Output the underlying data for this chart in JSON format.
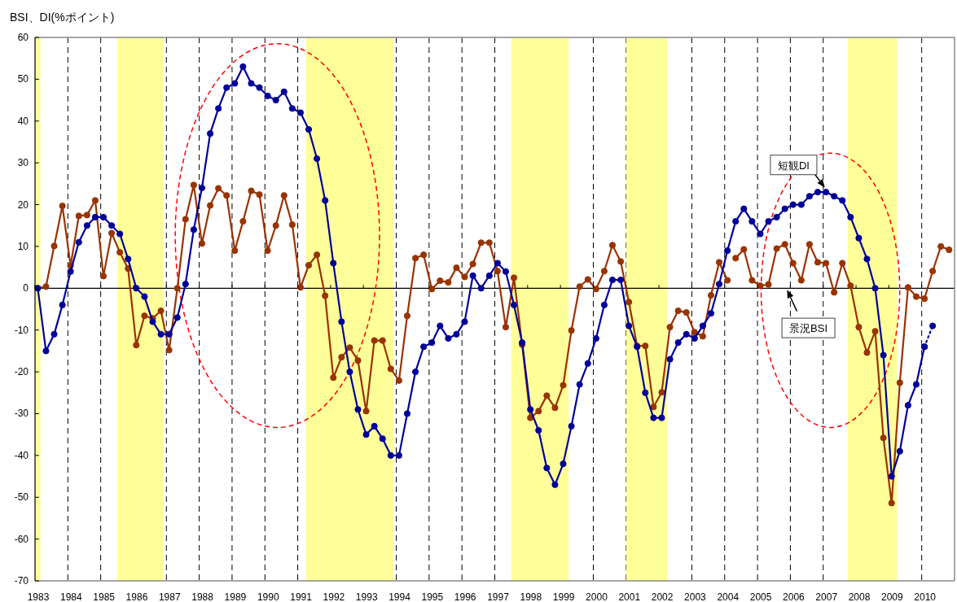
{
  "chart_data": {
    "type": "line",
    "ylabel": "BSI、DI(%ポイント)",
    "x": [
      "1983-02",
      "1983-05",
      "1983-08",
      "1983-11",
      "1984-02",
      "1984-05",
      "1984-08",
      "1984-11",
      "1985-02",
      "1985-05",
      "1985-08",
      "1985-11",
      "1986-02",
      "1986-05",
      "1986-08",
      "1986-11",
      "1987-02",
      "1987-05",
      "1987-08",
      "1987-11",
      "1988-02",
      "1988-05",
      "1988-08",
      "1988-11",
      "1989-02",
      "1989-05",
      "1989-08",
      "1989-11",
      "1990-02",
      "1990-05",
      "1990-08",
      "1990-11",
      "1991-02",
      "1991-05",
      "1991-08",
      "1991-11",
      "1992-02",
      "1992-05",
      "1992-08",
      "1992-11",
      "1993-02",
      "1993-05",
      "1993-08",
      "1993-11",
      "1994-02",
      "1994-05",
      "1994-08",
      "1994-11",
      "1995-02",
      "1995-05",
      "1995-08",
      "1995-11",
      "1996-02",
      "1996-05",
      "1996-08",
      "1996-11",
      "1997-02",
      "1997-05",
      "1997-08",
      "1997-11",
      "1998-02",
      "1998-05",
      "1998-08",
      "1998-11",
      "1999-02",
      "1999-05",
      "1999-08",
      "1999-11",
      "2000-02",
      "2000-05",
      "2000-08",
      "2000-11",
      "2001-02",
      "2001-05",
      "2001-08",
      "2001-11",
      "2002-02",
      "2002-05",
      "2002-08",
      "2002-11",
      "2003-02",
      "2003-05",
      "2003-08",
      "2003-11",
      "2004-02",
      "2004-05",
      "2004-08",
      "2004-11",
      "2005-02",
      "2005-05",
      "2005-08",
      "2005-11",
      "2006-02",
      "2006-05",
      "2006-08",
      "2006-11",
      "2007-02",
      "2007-05",
      "2007-08",
      "2007-11",
      "2008-02",
      "2008-05",
      "2008-08",
      "2008-11",
      "2009-02",
      "2009-05",
      "2009-08",
      "2009-11",
      "2010-02",
      "2010-05",
      "2010-08",
      "2010-11"
    ],
    "series": [
      {
        "color": "#993300",
        "marker": "circle",
        "values": [
          0,
          0.4,
          10.1,
          19.7,
          5.4,
          17.3,
          17.5,
          21,
          2.9,
          13.2,
          8.6,
          4.7,
          -13.6,
          -6.6,
          -7.2,
          -5.4,
          -14.8,
          0,
          16.5,
          24.7,
          10.7,
          19.8,
          23.9,
          22.2,
          9,
          16,
          23.3,
          22.4,
          9,
          15,
          22.2,
          15.2,
          0.2,
          5.5,
          8,
          -1.8,
          -21.4,
          -16.5,
          -14.2,
          -17.3,
          -29.4,
          -12.5,
          -12.5,
          -19.3,
          -22.1,
          -6.6,
          7.2,
          8,
          -0.2,
          1.8,
          1.4,
          4.9,
          2.7,
          5.8,
          10.9,
          10.9,
          4.1,
          -9.3,
          2.5,
          -13.5,
          -31,
          -29.4,
          -25.7,
          -28.6,
          -23.2,
          -10.1,
          0.4,
          2.1,
          -0.2,
          4.1,
          10.3,
          6.4,
          -3.3,
          -13.8,
          -13.8,
          -28.4,
          -24.9,
          -9.3,
          -5.4,
          -5.8,
          -10.5,
          -11.5,
          -1.7,
          6.2,
          1.9,
          null,
          null,
          null,
          null,
          null,
          null,
          null,
          null,
          null,
          null,
          null,
          null,
          null,
          null,
          null,
          null,
          null,
          null,
          null,
          null,
          null,
          null,
          null,
          null,
          null,
          null,
          null
        ]
      },
      {
        "name": "景況BSI",
        "color": "#993300",
        "marker": "circle",
        "values": [
          null,
          null,
          null,
          null,
          null,
          null,
          null,
          null,
          null,
          null,
          null,
          null,
          null,
          null,
          null,
          null,
          null,
          null,
          null,
          null,
          null,
          null,
          null,
          null,
          null,
          null,
          null,
          null,
          null,
          null,
          null,
          null,
          null,
          null,
          null,
          null,
          null,
          null,
          null,
          null,
          null,
          null,
          null,
          null,
          null,
          null,
          null,
          null,
          null,
          null,
          null,
          null,
          null,
          null,
          null,
          null,
          null,
          null,
          null,
          null,
          null,
          null,
          null,
          null,
          null,
          null,
          null,
          null,
          null,
          null,
          null,
          null,
          null,
          null,
          null,
          null,
          null,
          null,
          null,
          null,
          null,
          null,
          null,
          null,
          null,
          7.2,
          9.3,
          1.9,
          0.6,
          0.9,
          9.5,
          10.5,
          6,
          1.9,
          10.5,
          6.2,
          6,
          -1,
          6,
          0.6,
          -9.3,
          -15.4,
          -10.3,
          -35.8,
          -51.4,
          -22.6,
          0.2,
          -2,
          -2.5,
          4.1,
          10,
          9.2
        ]
      },
      {
        "name": "短観DI",
        "color": "#000099",
        "marker": "circle",
        "values": [
          0,
          -15,
          -11,
          -4,
          4,
          11,
          15,
          17,
          17,
          15,
          13,
          7,
          0,
          -2,
          -8,
          -11,
          -11,
          -7,
          1,
          14,
          24,
          37,
          43,
          48,
          49,
          53,
          49,
          48,
          46,
          45,
          47,
          43,
          42,
          38,
          31,
          21,
          6,
          -8,
          -20,
          -29,
          -35,
          -33,
          -36,
          -40,
          -40,
          -30,
          -20,
          -14,
          -13,
          -9,
          -12,
          -11,
          -8,
          3,
          0,
          3,
          6,
          4,
          -4,
          -13,
          -29,
          -34,
          -43,
          -47,
          -42,
          -33,
          -23,
          -18,
          -12,
          -4,
          2,
          2,
          -9,
          -14,
          -25,
          -31,
          -31,
          -17,
          -13,
          -11,
          -12,
          -9,
          -6,
          1,
          9,
          16,
          19,
          16,
          13,
          16,
          17,
          19,
          20,
          20,
          22,
          23,
          23,
          22,
          21,
          17,
          12,
          7,
          0,
          -16,
          -45,
          -39,
          -28,
          -23,
          -14,
          null,
          null,
          null
        ]
      },
      {
        "color": "#000099",
        "marker": "circle",
        "line_style": "dotted",
        "values": [
          null,
          null,
          null,
          null,
          null,
          null,
          null,
          null,
          null,
          null,
          null,
          null,
          null,
          null,
          null,
          null,
          null,
          null,
          null,
          null,
          null,
          null,
          null,
          null,
          null,
          null,
          null,
          null,
          null,
          null,
          null,
          null,
          null,
          null,
          null,
          null,
          null,
          null,
          null,
          null,
          null,
          null,
          null,
          null,
          null,
          null,
          null,
          null,
          null,
          null,
          null,
          null,
          null,
          null,
          null,
          null,
          null,
          null,
          null,
          null,
          null,
          null,
          null,
          null,
          null,
          null,
          null,
          null,
          null,
          null,
          null,
          null,
          null,
          null,
          null,
          null,
          null,
          null,
          null,
          null,
          null,
          null,
          null,
          null,
          null,
          null,
          null,
          null,
          null,
          null,
          null,
          null,
          null,
          null,
          null,
          null,
          null,
          null,
          null,
          null,
          null,
          null,
          null,
          null,
          null,
          null,
          null,
          null,
          -14,
          -9,
          null,
          null
        ]
      }
    ],
    "xlim": [
      "1983",
      "2011"
    ],
    "xticks": [
      "1983",
      "1984",
      "1985",
      "1986",
      "1987",
      "1988",
      "1989",
      "1990",
      "1991",
      "1992",
      "1993",
      "1994",
      "1995",
      "1996",
      "1997",
      "1998",
      "1999",
      "2000",
      "2001",
      "2002",
      "2003",
      "2004",
      "2005",
      "2006",
      "2007",
      "2008",
      "2009",
      "2010"
    ],
    "ylim": [
      -70,
      60
    ],
    "yticks": [
      -70,
      -60,
      -50,
      -40,
      -30,
      -20,
      -10,
      0,
      10,
      20,
      30,
      40,
      50,
      60
    ],
    "grid": "x",
    "bands": [
      {
        "axis": "x",
        "from": "1983",
        "to": "1983-03",
        "color": "#ffff99"
      },
      {
        "axis": "x",
        "from": "1985-07",
        "to": "1986-12",
        "color": "#ffff99"
      },
      {
        "axis": "x",
        "from": "1991-04",
        "to": "1993-12",
        "color": "#ffff99"
      },
      {
        "axis": "x",
        "from": "1997-07",
        "to": "1999-04",
        "color": "#ffff99"
      },
      {
        "axis": "x",
        "from": "2001-01",
        "to": "2002-04",
        "color": "#ffff99"
      },
      {
        "axis": "x",
        "from": "2007-10",
        "to": "2009-04",
        "color": "#ffff99"
      }
    ],
    "ref_lines": [
      {
        "axis": "y",
        "value": 0,
        "color": "#000000"
      }
    ]
  }
}
